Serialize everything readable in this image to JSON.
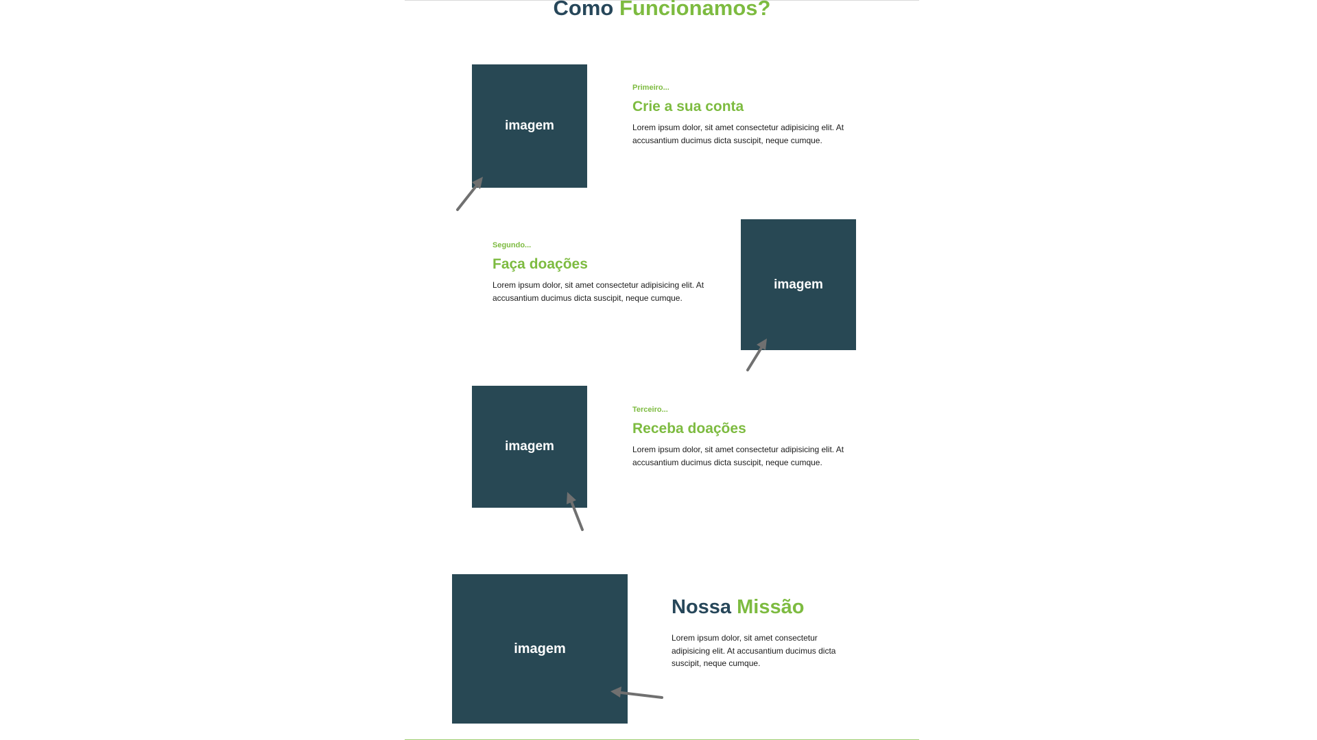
{
  "section": {
    "title_part1": "Como",
    "title_part2": "Funcionamos?"
  },
  "image_placeholder": "imagem",
  "steps": [
    {
      "kicker": "Primeiro...",
      "title": "Crie a sua conta",
      "text": "Lorem ipsum dolor, sit amet consectetur adipisicing elit. At accusantium ducimus dicta suscipit, neque cumque."
    },
    {
      "kicker": "Segundo...",
      "title": "Faça doações",
      "text": "Lorem ipsum dolor, sit amet consectetur adipisicing elit. At accusantium ducimus dicta suscipit, neque cumque."
    },
    {
      "kicker": "Terceiro...",
      "title": "Receba doações",
      "text": "Lorem ipsum dolor, sit amet consectetur adipisicing elit. At accusantium ducimus dicta suscipit, neque cumque."
    }
  ],
  "mission": {
    "title_part1": "Nossa",
    "title_part2": "Missão",
    "text": "Lorem ipsum dolor, sit amet consectetur adipisicing elit. At accusantium ducimus dicta suscipit, neque cumque."
  },
  "colors": {
    "primary_dark": "#27475a",
    "image_block": "#284854",
    "accent_green": "#7dbb40",
    "annotation_arrow": "#707070"
  },
  "icons": [
    "arrow-annotation-icon"
  ]
}
